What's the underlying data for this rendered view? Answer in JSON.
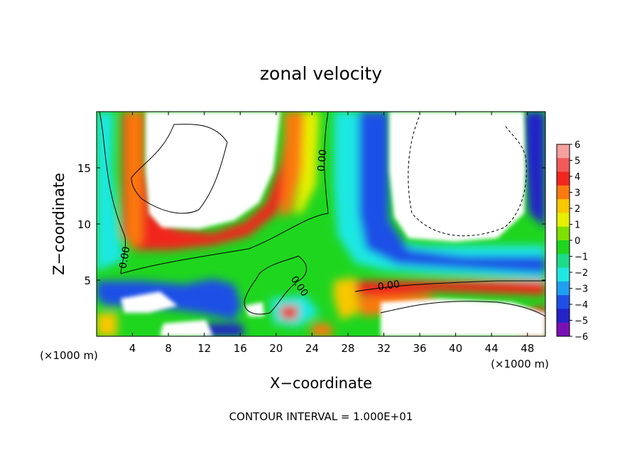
{
  "chart_data": {
    "type": "heatmap",
    "title": "zonal velocity",
    "xlabel": "X−coordinate",
    "ylabel": "Z−coordinate",
    "x_unit": "(×1000 m)",
    "x_unit_right": "(×1000 m)",
    "footer": "CONTOUR INTERVAL = 1.000E+01",
    "xlim": [
      0,
      50
    ],
    "ylim": [
      0,
      20
    ],
    "x_ticks": [
      4,
      8,
      12,
      16,
      20,
      24,
      28,
      32,
      36,
      40,
      44,
      48
    ],
    "x_tick_labels": [
      "4",
      "8",
      "12",
      "16",
      "20",
      "24",
      "28",
      "32",
      "36",
      "40",
      "44",
      "48"
    ],
    "y_ticks": [
      5,
      10,
      15
    ],
    "y_tick_labels": [
      "5",
      "10",
      "15"
    ],
    "colorbar": {
      "range": [
        -6,
        6
      ],
      "labels": [
        "6",
        "5",
        "4",
        "3",
        "2",
        "1",
        "0",
        "−1",
        "−2",
        "−3",
        "−4",
        "−5",
        "−6"
      ],
      "colors": [
        "#f7a0a0",
        "#f25a5a",
        "#f0271e",
        "#fa7a10",
        "#f7c800",
        "#e6f000",
        "#7ee000",
        "#1fd61f",
        "#1cdc8a",
        "#1fe8e2",
        "#1f9ff0",
        "#1f4fe6",
        "#2323c8",
        "#7a10b4"
      ]
    },
    "contour_labels": [
      "0.00",
      "0.00",
      "0.00",
      "0.00"
    ],
    "grid": false
  }
}
